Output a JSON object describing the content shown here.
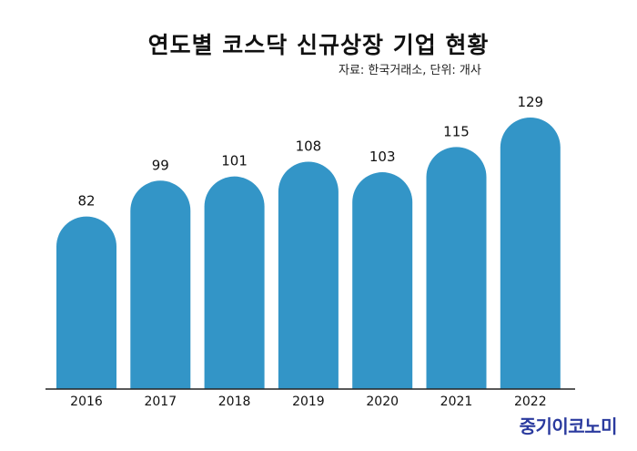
{
  "title": "연도별 코스닥 신규상장 기업 현황",
  "source": "자료: 한국거래소, 단위: 개사",
  "logo": "중기이코노미",
  "colors": {
    "bar": "#3395c7",
    "axis": "#222222",
    "text": "#111111",
    "logo": "#2a3a9e"
  },
  "chart_data": {
    "type": "bar",
    "title": "연도별 코스닥 신규상장 기업 현황",
    "subtitle": "자료: 한국거래소, 단위: 개사",
    "xlabel": "",
    "ylabel": "",
    "categories": [
      "2016",
      "2017",
      "2018",
      "2019",
      "2020",
      "2021",
      "2022"
    ],
    "values": [
      82,
      99,
      101,
      108,
      103,
      115,
      129
    ],
    "ylim": [
      0,
      129
    ],
    "grid": false,
    "data_labels": true
  }
}
